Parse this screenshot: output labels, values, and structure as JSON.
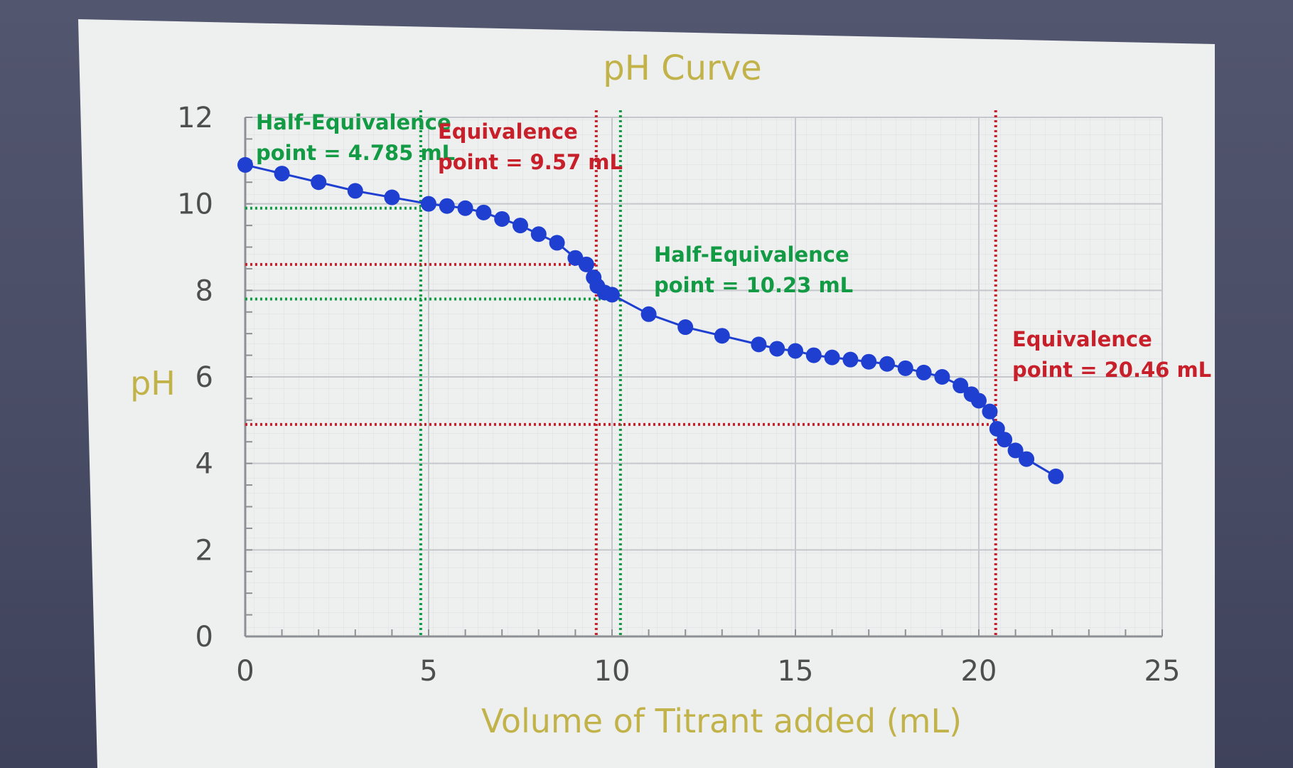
{
  "chart_data": {
    "type": "scatter",
    "title": "pH Curve",
    "xlabel": "Volume of Titrant added (mL)",
    "ylabel": "pH",
    "xlim": [
      0,
      25
    ],
    "ylim": [
      0,
      12
    ],
    "xticks": [
      "0",
      "5",
      "10",
      "15",
      "20",
      "25"
    ],
    "yticks": [
      "0",
      "2",
      "4",
      "6",
      "8",
      "10",
      "12"
    ],
    "grid": true,
    "legend": "none",
    "series": [
      {
        "color": "#1f3fd1",
        "x": [
          0,
          1,
          2,
          3,
          4,
          5,
          5.5,
          6,
          6.5,
          7,
          7.5,
          8,
          8.5,
          9,
          9.3,
          9.5,
          9.6,
          9.8,
          10,
          11,
          12,
          13,
          14,
          14.5,
          15,
          15.5,
          16,
          16.5,
          17,
          17.5,
          18,
          18.5,
          19,
          19.5,
          19.8,
          20,
          20.3,
          20.5,
          20.7,
          21,
          21.3,
          22.1
        ],
        "y": [
          10.9,
          10.7,
          10.5,
          10.3,
          10.15,
          10.0,
          9.95,
          9.9,
          9.8,
          9.65,
          9.5,
          9.3,
          9.1,
          8.75,
          8.6,
          8.3,
          8.1,
          7.95,
          7.9,
          7.45,
          7.15,
          6.95,
          6.75,
          6.65,
          6.6,
          6.5,
          6.45,
          6.4,
          6.35,
          6.3,
          6.2,
          6.1,
          6.0,
          5.8,
          5.6,
          5.45,
          5.2,
          4.8,
          4.55,
          4.3,
          4.1,
          3.7
        ]
      }
    ],
    "annotations": [
      {
        "line1": "Half-Equivalence",
        "line2": "point = 4.785 mL",
        "x": 4.785,
        "y": 9.9,
        "color": "#139a44"
      },
      {
        "line1": "Equivalence",
        "line2": "point = 9.57 mL",
        "x": 9.57,
        "y": 8.6,
        "color": "#c8202a"
      },
      {
        "line1": "Half-Equivalence",
        "line2": "point = 10.23 mL",
        "x": 10.23,
        "y": 7.8,
        "color": "#139a44"
      },
      {
        "line1": "Equivalence",
        "line2": "point = 20.46 mL",
        "x": 20.46,
        "y": 4.9,
        "color": "#c8202a"
      }
    ]
  }
}
